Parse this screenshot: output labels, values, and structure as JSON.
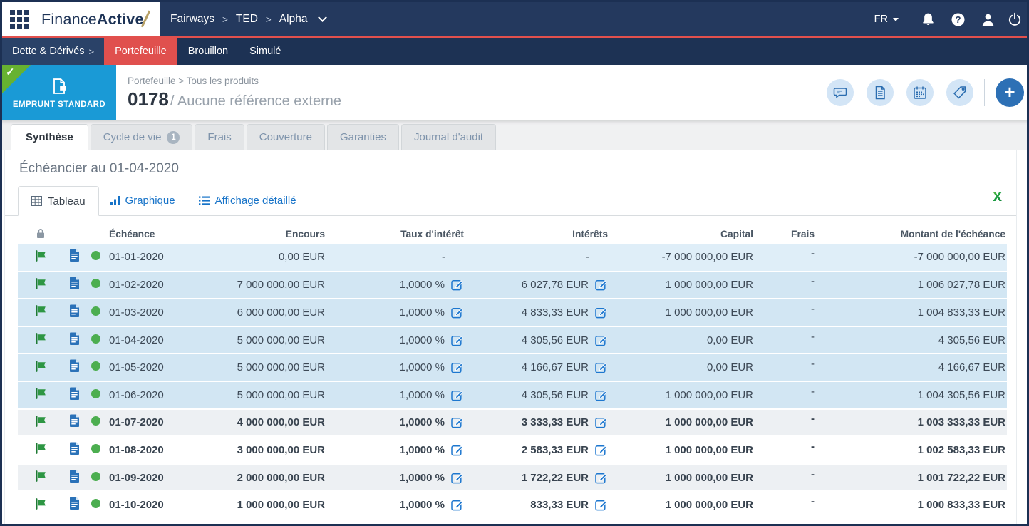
{
  "topbar": {
    "logo_part1": "Finance",
    "logo_part2": "Active",
    "breadcrumb": [
      "Fairways",
      "TED",
      "Alpha"
    ],
    "separator": ">",
    "language": "FR"
  },
  "nav": {
    "menu_label": "Dette & Dérivés",
    "menu_arrow": ">",
    "items": [
      "Portefeuille",
      "Brouillon",
      "Simulé"
    ],
    "active_item": "Portefeuille"
  },
  "product": {
    "type_label": "EMPRUNT STANDARD",
    "breadcrumb": "Portefeuille > Tous les produits",
    "number": "0178",
    "reference": "/ Aucune référence externe"
  },
  "tabs": [
    {
      "label": "Synthèse"
    },
    {
      "label": "Cycle de vie",
      "badge": "1"
    },
    {
      "label": "Frais"
    },
    {
      "label": "Couverture"
    },
    {
      "label": "Garanties"
    },
    {
      "label": "Journal d'audit"
    }
  ],
  "schedule": {
    "title": "Échéancier au 01-04-2020",
    "views": {
      "table": "Tableau",
      "chart": "Graphique",
      "detail": "Affichage détaillé"
    },
    "export_label": "x"
  },
  "table": {
    "headers": {
      "echeance": "Échéance",
      "encours": "Encours",
      "taux": "Taux d'intérêt",
      "interets": "Intérêts",
      "capital": "Capital",
      "frais": "Frais",
      "montant": "Montant de l'échéance"
    },
    "rows": [
      {
        "date": "01-01-2020",
        "encours": "0,00 EUR",
        "taux": "-",
        "taux_edit": false,
        "interets": "-",
        "interets_edit": false,
        "capital": "-7 000 000,00 EUR",
        "frais": "-",
        "montant": "-7 000 000,00 EUR",
        "bold": false
      },
      {
        "date": "01-02-2020",
        "encours": "7 000 000,00 EUR",
        "taux": "1,0000 %",
        "taux_edit": true,
        "interets": "6 027,78 EUR",
        "interets_edit": true,
        "capital": "1 000 000,00 EUR",
        "frais": "-",
        "montant": "1 006 027,78 EUR",
        "bold": false
      },
      {
        "date": "01-03-2020",
        "encours": "6 000 000,00 EUR",
        "taux": "1,0000 %",
        "taux_edit": true,
        "interets": "4 833,33 EUR",
        "interets_edit": true,
        "capital": "1 000 000,00 EUR",
        "frais": "-",
        "montant": "1 004 833,33 EUR",
        "bold": false
      },
      {
        "date": "01-04-2020",
        "encours": "5 000 000,00 EUR",
        "taux": "1,0000 %",
        "taux_edit": true,
        "interets": "4 305,56 EUR",
        "interets_edit": true,
        "capital": "0,00 EUR",
        "frais": "-",
        "montant": "4 305,56 EUR",
        "bold": false
      },
      {
        "date": "01-05-2020",
        "encours": "5 000 000,00 EUR",
        "taux": "1,0000 %",
        "taux_edit": true,
        "interets": "4 166,67 EUR",
        "interets_edit": true,
        "capital": "0,00 EUR",
        "frais": "-",
        "montant": "4 166,67 EUR",
        "bold": false
      },
      {
        "date": "01-06-2020",
        "encours": "5 000 000,00 EUR",
        "taux": "1,0000 %",
        "taux_edit": true,
        "interets": "4 305,56 EUR",
        "interets_edit": true,
        "capital": "1 000 000,00 EUR",
        "frais": "-",
        "montant": "1 004 305,56 EUR",
        "bold": false
      },
      {
        "date": "01-07-2020",
        "encours": "4 000 000,00 EUR",
        "taux": "1,0000 %",
        "taux_edit": true,
        "interets": "3 333,33 EUR",
        "interets_edit": true,
        "capital": "1 000 000,00 EUR",
        "frais": "-",
        "montant": "1 003 333,33 EUR",
        "bold": true
      },
      {
        "date": "01-08-2020",
        "encours": "3 000 000,00 EUR",
        "taux": "1,0000 %",
        "taux_edit": true,
        "interets": "2 583,33 EUR",
        "interets_edit": true,
        "capital": "1 000 000,00 EUR",
        "frais": "-",
        "montant": "1 002 583,33 EUR",
        "bold": true
      },
      {
        "date": "01-09-2020",
        "encours": "2 000 000,00 EUR",
        "taux": "1,0000 %",
        "taux_edit": true,
        "interets": "1 722,22 EUR",
        "interets_edit": true,
        "capital": "1 000 000,00 EUR",
        "frais": "-",
        "montant": "1 001 722,22 EUR",
        "bold": true
      },
      {
        "date": "01-10-2020",
        "encours": "1 000 000,00 EUR",
        "taux": "1,0000 %",
        "taux_edit": true,
        "interets": "833,33 EUR",
        "interets_edit": true,
        "capital": "1 000 000,00 EUR",
        "frais": "-",
        "montant": "1 000 833,33 EUR",
        "bold": true
      }
    ]
  },
  "colors": {
    "topbar_navy": "#24395e",
    "nav_navy": "#1d3254",
    "accent_red": "#e0504e",
    "product_blue": "#1a9ad6",
    "corner_green": "#67b231",
    "status_green": "#4cae50",
    "flag_green": "#2d9643",
    "link_blue": "#1773c8",
    "row_blue_light": "#dfeef8",
    "row_blue_dark": "#d2e6f3",
    "excel_green": "#1f9e4e"
  }
}
